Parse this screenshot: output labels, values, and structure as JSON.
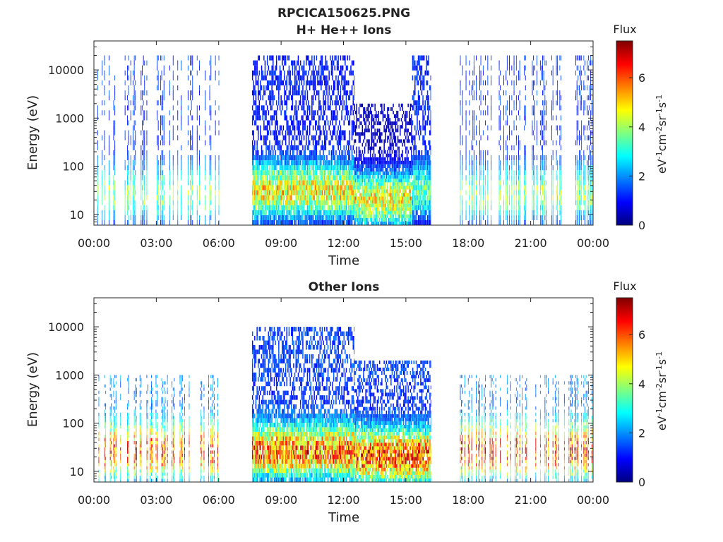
{
  "figure_title": "RPCICA150625.PNG",
  "chart_data": [
    {
      "type": "heatmap",
      "title": "H+ He++ Ions",
      "xlabel": "Time",
      "ylabel": "Energy (eV)",
      "x_ticks": [
        "00:00",
        "03:00",
        "06:00",
        "09:00",
        "12:00",
        "15:00",
        "18:00",
        "21:00",
        "00:00"
      ],
      "xlim_hours": [
        0,
        24
      ],
      "y_scale": "log",
      "ylim": [
        6,
        40000
      ],
      "y_ticks": [
        10,
        100,
        1000,
        10000
      ],
      "y_tick_labels": [
        "10",
        "100",
        "1000",
        "10000"
      ],
      "colorbar": {
        "title": "Flux",
        "label": "eV-1cm-2sr-1s-1",
        "range": [
          0,
          7.5
        ],
        "ticks": [
          "0",
          "2",
          "4",
          "6"
        ],
        "colormap": "jet"
      },
      "data_segments_hours": [
        [
          0.0,
          6.0
        ],
        [
          7.6,
          12.5
        ],
        [
          12.5,
          15.3
        ],
        [
          15.3,
          16.2
        ],
        [
          17.6,
          24.0
        ]
      ],
      "segment_profiles": [
        {
          "segment": "00:00-06:00",
          "vertical_bursts": true,
          "energy_range_eV": [
            6,
            20000
          ],
          "peak_energy_eV": 25,
          "peak_flux": 3.5,
          "high_energy_flux": 1.4
        },
        {
          "segment": "07:36-12:30",
          "vertical_bursts": false,
          "energy_range_eV": [
            6,
            20000
          ],
          "peak_energy_eV": 30,
          "peak_flux": 4.5,
          "high_energy_flux": 1.2
        },
        {
          "segment": "12:30-15:18",
          "vertical_bursts": false,
          "energy_range_eV": [
            6,
            2000
          ],
          "peak_energy_eV": 20,
          "peak_flux": 4.8,
          "high_energy_flux": 0.5
        },
        {
          "segment": "15:18-16:12",
          "vertical_bursts": false,
          "energy_range_eV": [
            6,
            20000
          ],
          "peak_energy_eV": 30,
          "peak_flux": 3.0,
          "high_energy_flux": 1.3
        },
        {
          "segment": "17:36-24:00",
          "vertical_bursts": true,
          "energy_range_eV": [
            6,
            20000
          ],
          "peak_energy_eV": 25,
          "peak_flux": 3.5,
          "high_energy_flux": 1.4
        }
      ]
    },
    {
      "type": "heatmap",
      "title": "Other Ions",
      "xlabel": "Time",
      "ylabel": "Energy (eV)",
      "x_ticks": [
        "00:00",
        "03:00",
        "06:00",
        "09:00",
        "12:00",
        "15:00",
        "18:00",
        "21:00",
        "00:00"
      ],
      "xlim_hours": [
        0,
        24
      ],
      "y_scale": "log",
      "ylim": [
        6,
        40000
      ],
      "y_ticks": [
        10,
        100,
        1000,
        10000
      ],
      "y_tick_labels": [
        "10",
        "100",
        "1000",
        "10000"
      ],
      "colorbar": {
        "title": "Flux",
        "label": "eV-1cm-2sr-1s-1",
        "range": [
          0,
          7.5
        ],
        "ticks": [
          "0",
          "2",
          "4",
          "6"
        ],
        "colormap": "jet"
      },
      "data_segments_hours": [
        [
          0.0,
          6.0
        ],
        [
          7.6,
          12.5
        ],
        [
          12.5,
          16.2
        ],
        [
          17.6,
          24.0
        ]
      ],
      "segment_profiles": [
        {
          "segment": "00:00-06:00",
          "vertical_bursts": true,
          "energy_range_eV": [
            6,
            1000
          ],
          "peak_energy_eV": 25,
          "peak_flux": 5.8,
          "high_energy_flux": 2.2
        },
        {
          "segment": "07:36-12:30",
          "vertical_bursts": false,
          "energy_range_eV": [
            6,
            10000
          ],
          "peak_energy_eV": 25,
          "peak_flux": 5.5,
          "high_energy_flux": 1.5
        },
        {
          "segment": "12:30-16:12",
          "vertical_bursts": false,
          "energy_range_eV": [
            6,
            2000
          ],
          "peak_energy_eV": 20,
          "peak_flux": 5.8,
          "high_energy_flux": 1.5
        },
        {
          "segment": "17:36-24:00",
          "vertical_bursts": true,
          "energy_range_eV": [
            6,
            1000
          ],
          "peak_energy_eV": 25,
          "peak_flux": 5.8,
          "high_energy_flux": 2.2
        }
      ]
    }
  ]
}
